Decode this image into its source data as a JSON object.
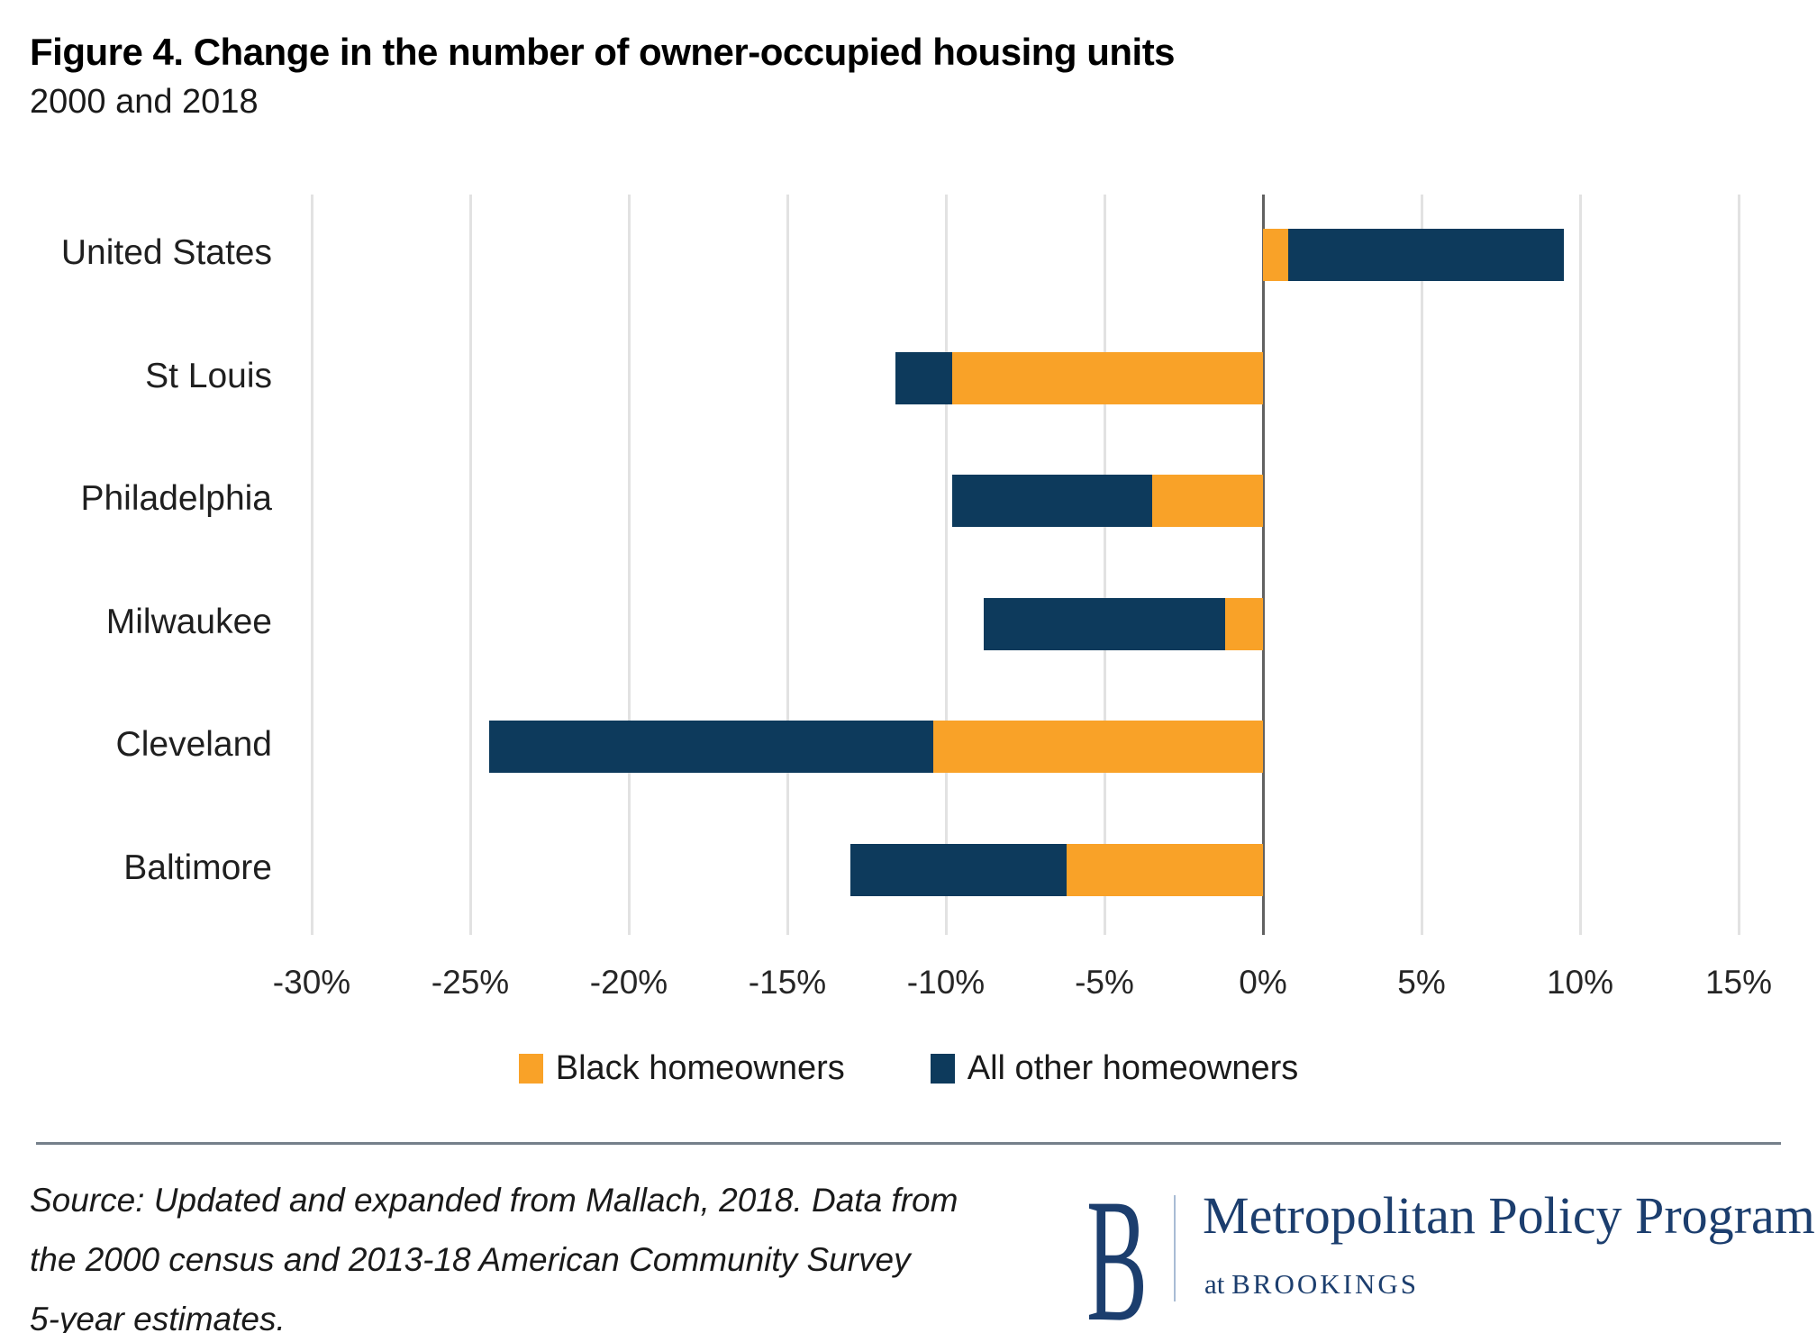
{
  "title": "Figure 4. Change in the number of owner-occupied housing units",
  "subtitle": "2000 and 2018",
  "chart_data": {
    "type": "bar",
    "orientation": "horizontal",
    "stacked": true,
    "title": "Figure 4. Change in the number of owner-occupied housing units",
    "subtitle": "2000 and 2018",
    "categories": [
      "United States",
      "St Louis",
      "Philadelphia",
      "Milwaukee",
      "Cleveland",
      "Baltimore"
    ],
    "series": [
      {
        "name": "Black homeowners",
        "color": "#F9A228",
        "values": [
          0.8,
          -9.8,
          -3.5,
          -1.2,
          -10.4,
          -6.2
        ]
      },
      {
        "name": "All other homeowners",
        "color": "#0D3A5C",
        "values": [
          8.7,
          -1.8,
          -6.3,
          -7.6,
          -14.0,
          -6.8
        ]
      }
    ],
    "stacked_totals_pct": [
      9.5,
      -11.6,
      -9.8,
      -8.8,
      -24.4,
      -13.0
    ],
    "x_tick_values": [
      -30,
      -25,
      -20,
      -15,
      -10,
      -5,
      0,
      5,
      10,
      15
    ],
    "x_tick_labels": [
      "-30%",
      "-25%",
      "-20%",
      "-15%",
      "-10%",
      "-5%",
      "0%",
      "5%",
      "10%",
      "15%"
    ],
    "xlim": [
      -30,
      17.5
    ],
    "grid": "vertical-gridlines-on",
    "zero_line": true,
    "legend_position": "bottom-center",
    "unit": "percent"
  },
  "legend": {
    "items": [
      {
        "label": "Black homeowners",
        "color": "#F9A228"
      },
      {
        "label": "All other homeowners",
        "color": "#0D3A5C"
      }
    ]
  },
  "source": {
    "lines": [
      "Source: Updated and expanded from Mallach, 2018. Data from",
      "the 2000 census and 2013-18 American Community Survey",
      "5-year estimates."
    ]
  },
  "logo": {
    "letter": "B",
    "program": "Metropolitan Policy Program",
    "at": "at ",
    "org": "BROOKINGS"
  },
  "colors": {
    "black_homeowners": "#F9A228",
    "all_other_homeowners": "#0D3A5C",
    "gridline": "#E2E2E2",
    "zero_line": "#616161",
    "logo_navy": "#1C3E6E",
    "footer_rule": "#75808B"
  }
}
